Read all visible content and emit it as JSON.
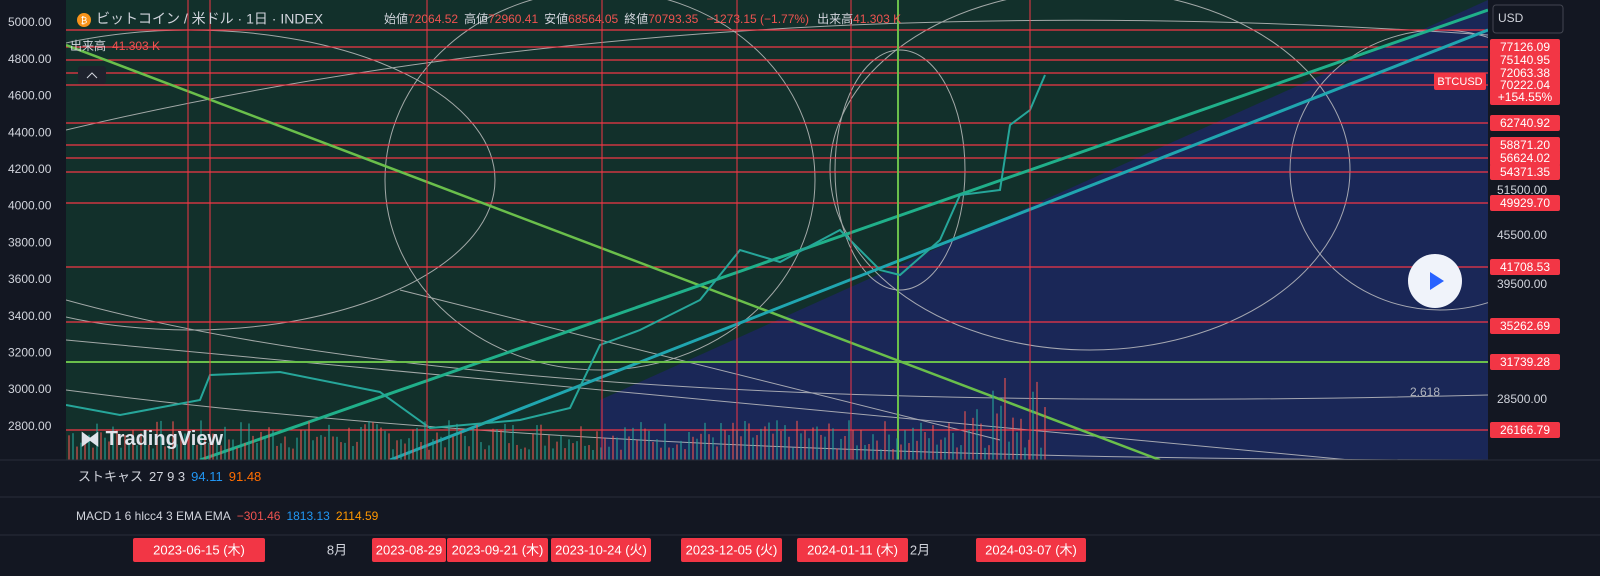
{
  "header": {
    "symbol": "ビットコイン / 米ドル · 1日 · INDEX",
    "ohlc": [
      {
        "label": "始値",
        "value": "72064.52"
      },
      {
        "label": "高値",
        "value": "72960.41"
      },
      {
        "label": "安値",
        "value": "68564.05"
      },
      {
        "label": "終値",
        "value": "70793.35"
      }
    ],
    "change": "−1273.15 (−1.77%)",
    "volume": {
      "label": "出来高",
      "value": "41.303 K"
    }
  },
  "volume_legend": {
    "label": "出来高",
    "value": "41.303 K"
  },
  "left_axis": [
    "5000.00",
    "4800.00",
    "4600.00",
    "4400.00",
    "4200.00",
    "4000.00",
    "3800.00",
    "3600.00",
    "3400.00",
    "3200.00",
    "3000.00",
    "2800.00"
  ],
  "price_labels": [
    "77126.09",
    "75140.95",
    "72063.38",
    "70222.04",
    "+154.55%",
    "62740.92",
    "58871.20",
    "56624.02",
    "54371.35",
    "49929.70",
    "41708.53",
    "35262.69",
    "31739.28",
    "26166.79"
  ],
  "axis_labels": [
    "51500.00",
    "45500.00",
    "39500.00",
    "28500.00"
  ],
  "symbol_tag": "BTCUSD",
  "currency": "USD",
  "fib_label": "2.618",
  "logo": "TradingView",
  "stochastic": {
    "name": "ストキャス",
    "params": "27 9 3",
    "values": [
      "94.11",
      "91.48"
    ]
  },
  "macd": {
    "name": "MACD 1 6 hlcc4 3 EMA EMA",
    "values": [
      "−301.46",
      "1813.13",
      "2114.59"
    ]
  },
  "time_axis": [
    "2023-06-15 (木)",
    "8月",
    "2023-08-29",
    "2023-09-21 (木)",
    "2023-10-24 (火)",
    "2023-12-05 (火)",
    "2024-01-11 (木)",
    "2月",
    "2024-03-07 (木)"
  ]
}
